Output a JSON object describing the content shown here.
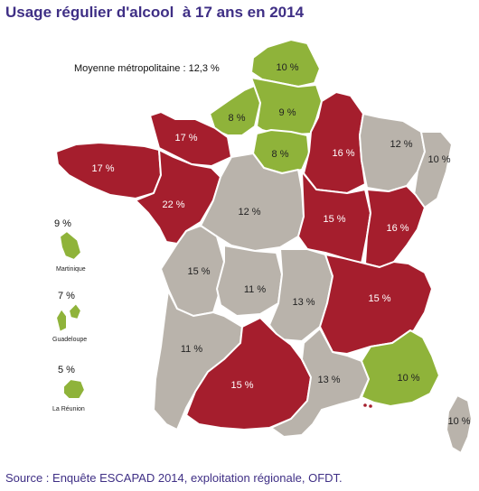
{
  "title": "Usage régulier d'alcool  à 17 ans en 2014",
  "average_label": "Moyenne métropolitaine : 12,3 %",
  "source": "Source : Enquête ESCAPAD 2014, exploitation régionale, OFDT.",
  "colors": {
    "high": "#a51e2d",
    "average": "#b9b3ab",
    "low": "#8fb33a"
  },
  "regions": [
    {
      "id": "nord-pas-de-calais",
      "value": "10 %",
      "category": "low"
    },
    {
      "id": "haute-normandie",
      "value": "8 %",
      "category": "low"
    },
    {
      "id": "picardie",
      "value": "9 %",
      "category": "low"
    },
    {
      "id": "ile-de-france",
      "value": "8 %",
      "category": "low"
    },
    {
      "id": "basse-normandie",
      "value": "17 %",
      "category": "high"
    },
    {
      "id": "bretagne",
      "value": "17 %",
      "category": "high"
    },
    {
      "id": "pays-de-la-loire",
      "value": "22 %",
      "category": "high"
    },
    {
      "id": "champagne-ardenne",
      "value": "16 %",
      "category": "high"
    },
    {
      "id": "lorraine",
      "value": "12 %",
      "category": "average"
    },
    {
      "id": "alsace",
      "value": "10 %",
      "category": "average"
    },
    {
      "id": "centre",
      "value": "12 %",
      "category": "average"
    },
    {
      "id": "bourgogne",
      "value": "15 %",
      "category": "high"
    },
    {
      "id": "franche-comte",
      "value": "16 %",
      "category": "high"
    },
    {
      "id": "poitou-charentes",
      "value": "15 %",
      "category": "average"
    },
    {
      "id": "limousin",
      "value": "11 %",
      "category": "average"
    },
    {
      "id": "auvergne",
      "value": "13 %",
      "category": "average"
    },
    {
      "id": "rhone-alpes",
      "value": "15 %",
      "category": "high"
    },
    {
      "id": "aquitaine",
      "value": "11 %",
      "category": "average"
    },
    {
      "id": "midi-pyrenees",
      "value": "15 %",
      "category": "high"
    },
    {
      "id": "languedoc-roussillon",
      "value": "13 %",
      "category": "average"
    },
    {
      "id": "paca",
      "value": "10 %",
      "category": "low"
    },
    {
      "id": "corse",
      "value": "10 %",
      "category": "average"
    }
  ],
  "overseas": [
    {
      "id": "martinique",
      "name": "Martinique",
      "value": "9 %",
      "category": "low"
    },
    {
      "id": "guadeloupe",
      "name": "Guadeloupe",
      "value": "7 %",
      "category": "low"
    },
    {
      "id": "reunion",
      "name": "La Réunion",
      "value": "5 %",
      "category": "low"
    }
  ]
}
